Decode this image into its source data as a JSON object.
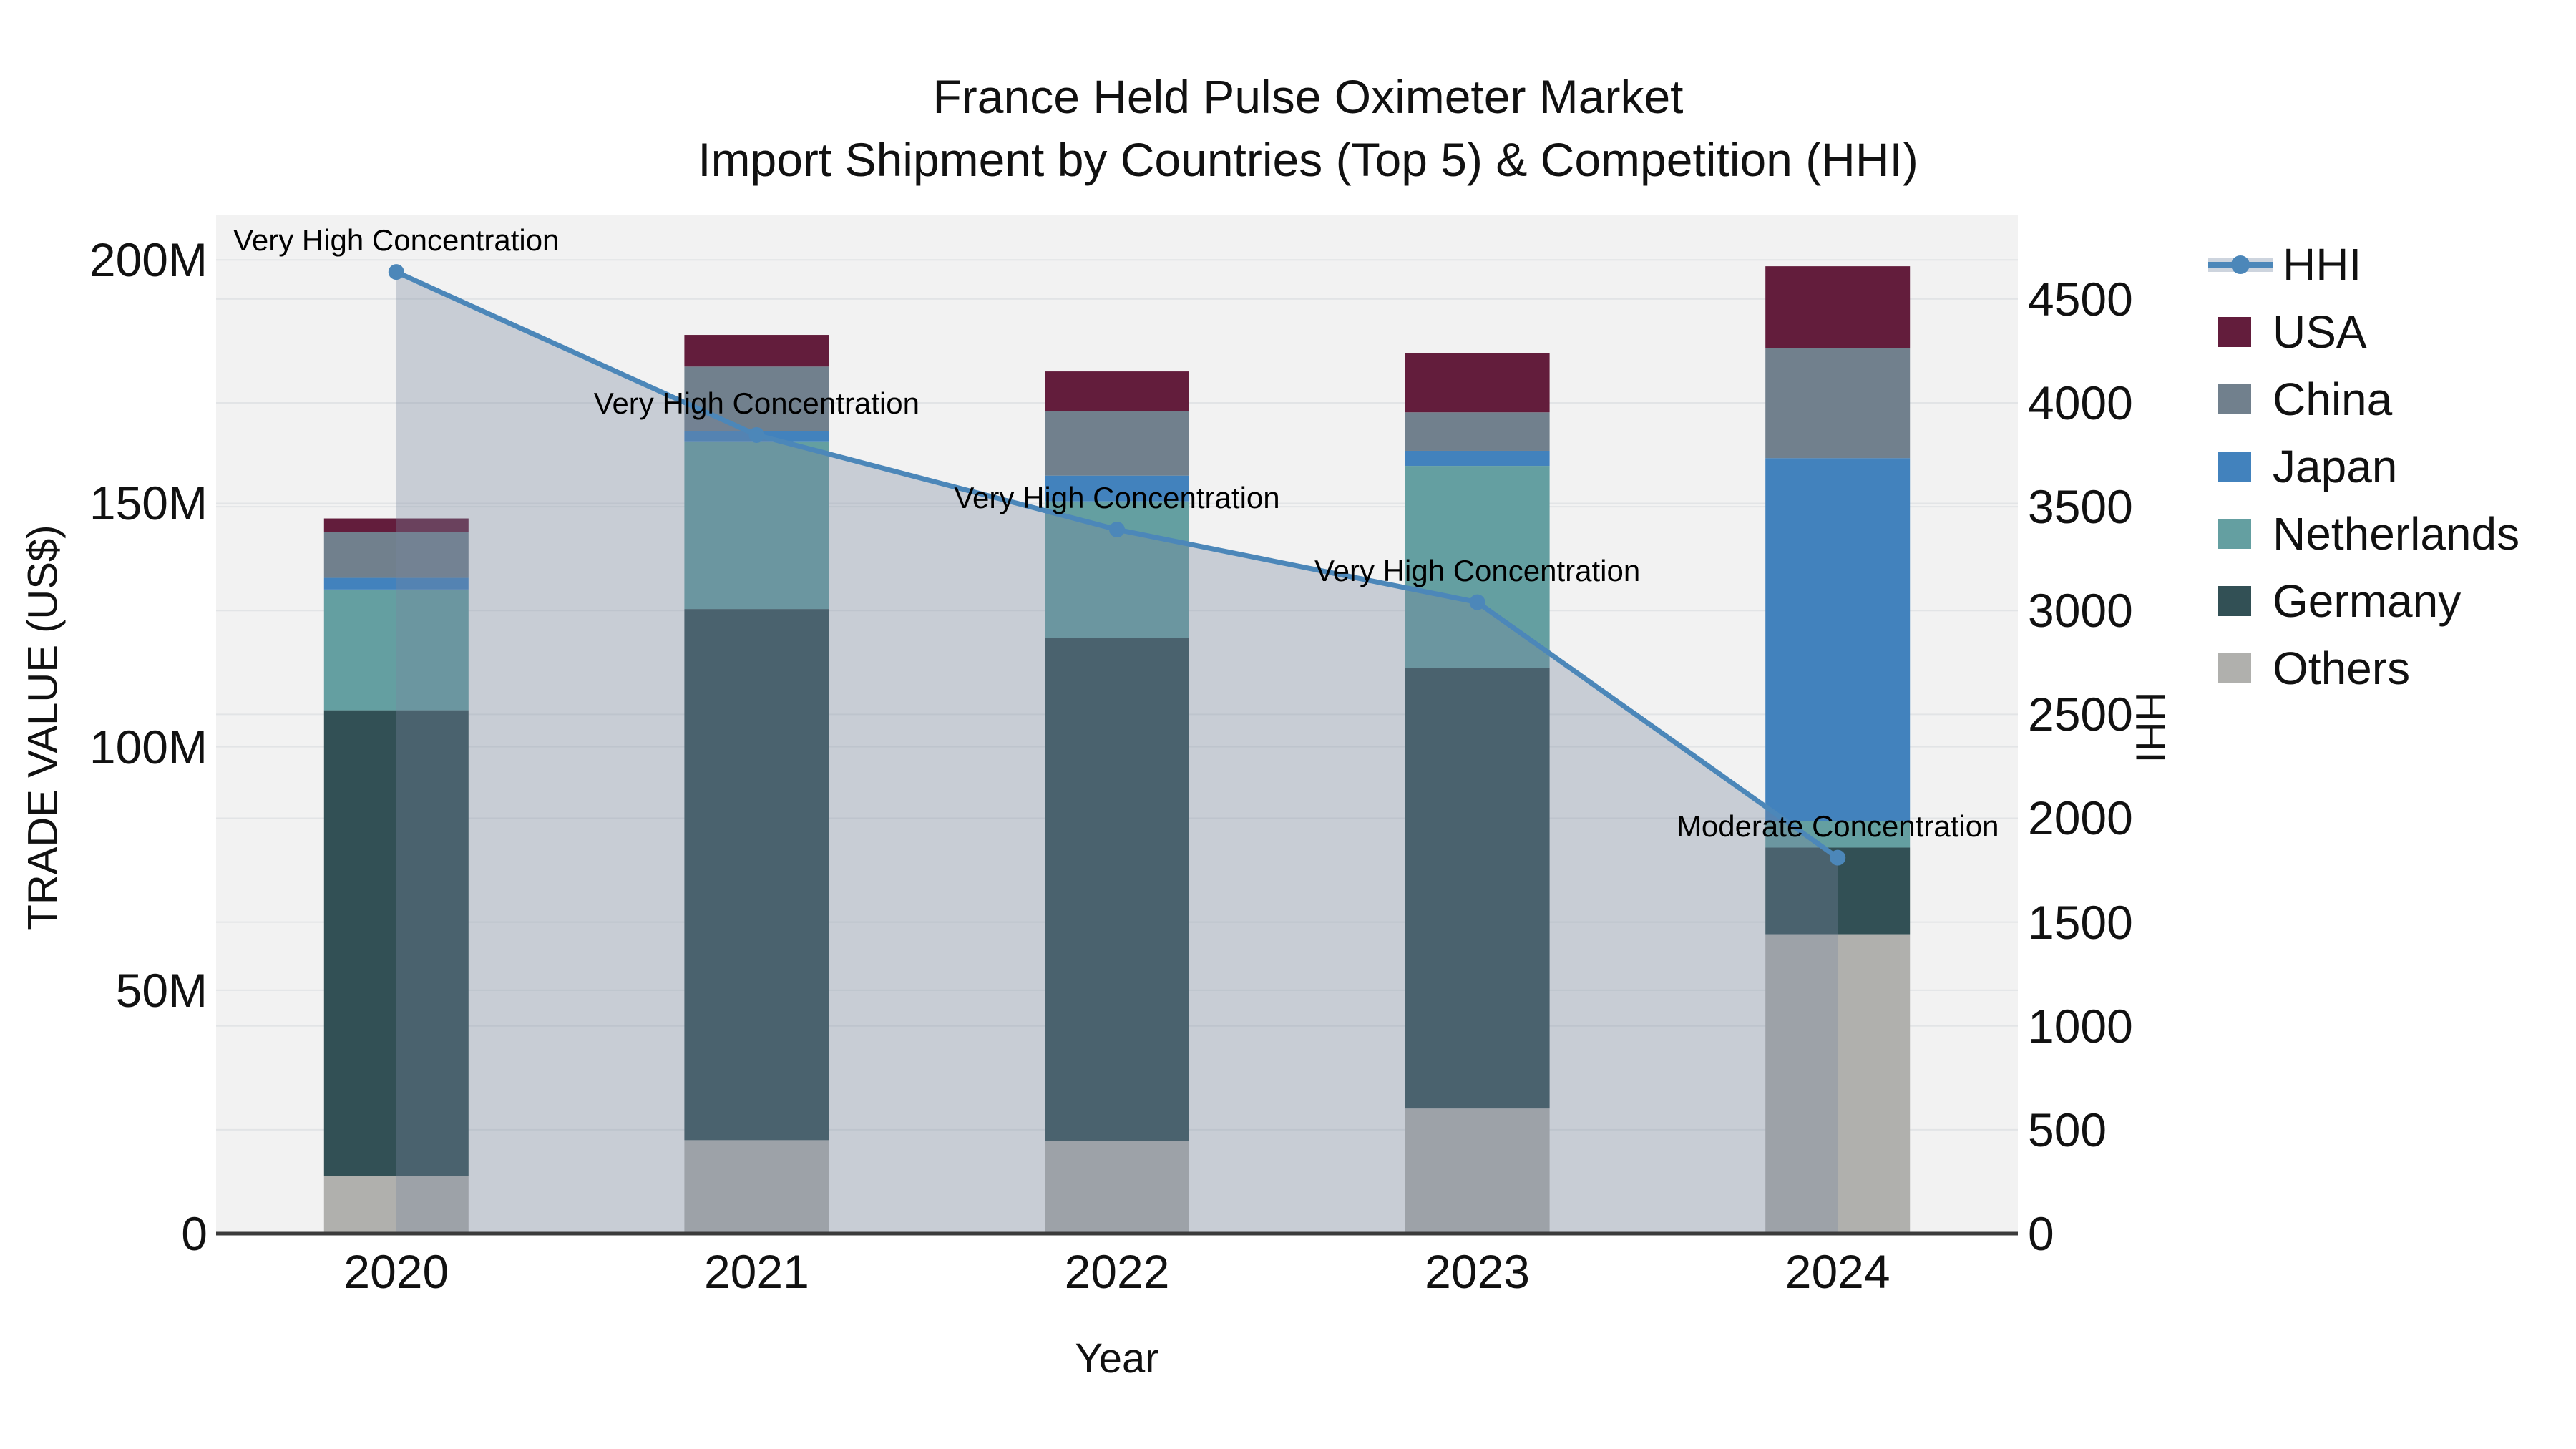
{
  "header": {
    "title": "France Held Pulse Oximeter Market",
    "subtitle": "Import Shipment by Countries (Top 5) & Competition (HHI)"
  },
  "chart_data": {
    "type": "bar",
    "subtype": "stacked-bar-with-line",
    "title": "France Held Pulse Oximeter Market",
    "subtitle": "Import Shipment by Countries (Top 5) & Competition (HHI)",
    "xlabel": "Year",
    "ylabel_left": "TRADE VALUE (US$)",
    "ylabel_right": "HHI",
    "categories": [
      "2020",
      "2021",
      "2022",
      "2023",
      "2024"
    ],
    "bar_unit": "millions US$",
    "series": [
      {
        "name": "Others",
        "color": "#b0b0ad",
        "values": [
          11.9,
          19.2,
          19.1,
          25.7,
          61.5
        ]
      },
      {
        "name": "Germany",
        "color": "#325055",
        "values": [
          95.6,
          109.1,
          103.3,
          90.5,
          17.8
        ]
      },
      {
        "name": "Netherlands",
        "color": "#649fa1",
        "values": [
          24.8,
          34.3,
          28.0,
          41.5,
          5.5
        ]
      },
      {
        "name": "Japan",
        "color": "#4282bd",
        "values": [
          2.4,
          2.3,
          5.3,
          3.1,
          74.5
        ]
      },
      {
        "name": "China",
        "color": "#71808d",
        "values": [
          9.4,
          13.2,
          13.3,
          7.9,
          22.6
        ]
      },
      {
        "name": "USA",
        "color": "#631d3c",
        "values": [
          2.8,
          6.5,
          8.1,
          12.2,
          16.8
        ]
      }
    ],
    "bar_totals": [
      146.9,
      184.6,
      177.1,
      180.9,
      198.7
    ],
    "line_series": {
      "name": "HHI",
      "color": "#4c87b9",
      "area_fill": "rgba(120,135,158,0.34)",
      "values": [
        4630,
        3845,
        3390,
        3040,
        1810
      ]
    },
    "annotations": [
      {
        "category": "2020",
        "text": "Very High Concentration"
      },
      {
        "category": "2021",
        "text": "Very High Concentration"
      },
      {
        "category": "2022",
        "text": "Very High Concentration"
      },
      {
        "category": "2023",
        "text": "Very High Concentration"
      },
      {
        "category": "2024",
        "text": "Moderate Concentration"
      }
    ],
    "y_left": {
      "max": 209.3,
      "tick_values": [
        0,
        50,
        100,
        150,
        200
      ],
      "tick_labels": [
        "0",
        "50M",
        "100M",
        "150M",
        "200M"
      ]
    },
    "y_right": {
      "max": 4906,
      "tick_values": [
        0,
        500,
        1000,
        1500,
        2000,
        2500,
        3000,
        3500,
        4000,
        4500
      ],
      "tick_labels": [
        "0",
        "500",
        "1000",
        "1500",
        "2000",
        "2500",
        "3000",
        "3500",
        "4000",
        "4500"
      ]
    },
    "legend": [
      {
        "label": "HHI",
        "type": "line",
        "color": "#4c87b9"
      },
      {
        "label": "USA",
        "type": "swatch",
        "color": "#631d3c"
      },
      {
        "label": "China",
        "type": "swatch",
        "color": "#71808d"
      },
      {
        "label": "Japan",
        "type": "swatch",
        "color": "#4282bd"
      },
      {
        "label": "Netherlands",
        "type": "swatch",
        "color": "#649fa1"
      },
      {
        "label": "Germany",
        "type": "swatch",
        "color": "#325055"
      },
      {
        "label": "Others",
        "type": "swatch",
        "color": "#b0b0ad"
      }
    ],
    "legend_position": "right",
    "grid": true,
    "plot_background": "#f2f2f2"
  }
}
